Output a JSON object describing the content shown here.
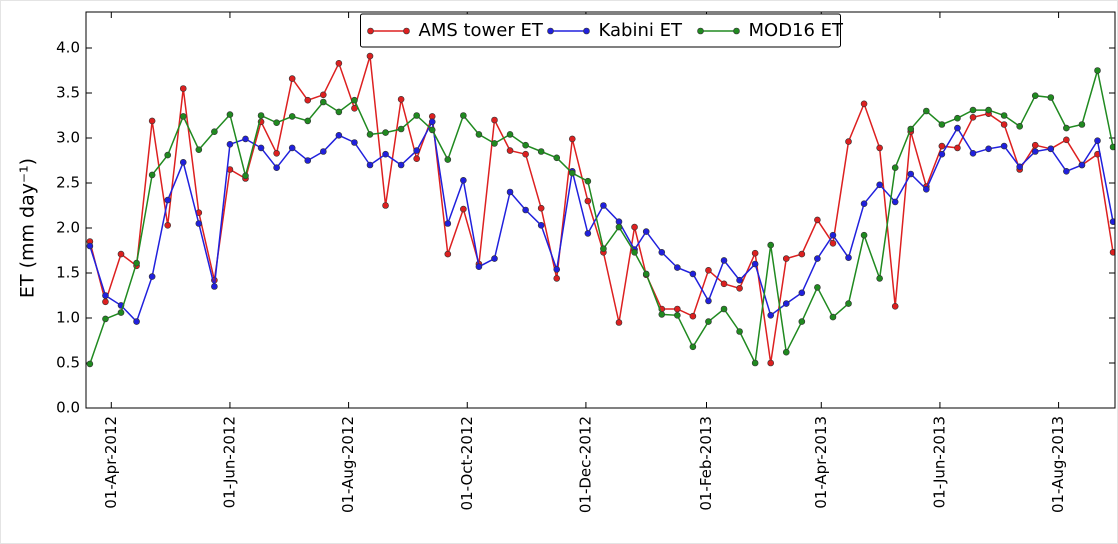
{
  "chart_data": {
    "type": "line",
    "ylabel": "ET (mm day⁻¹)",
    "x": [
      "2012-03-21",
      "2012-03-29",
      "2012-04-06",
      "2012-04-14",
      "2012-04-22",
      "2012-04-30",
      "2012-05-08",
      "2012-05-16",
      "2012-05-24",
      "2012-06-01",
      "2012-06-09",
      "2012-06-17",
      "2012-06-25",
      "2012-07-03",
      "2012-07-11",
      "2012-07-19",
      "2012-07-27",
      "2012-08-04",
      "2012-08-12",
      "2012-08-20",
      "2012-08-28",
      "2012-09-05",
      "2012-09-13",
      "2012-09-21",
      "2012-09-29",
      "2012-10-07",
      "2012-10-15",
      "2012-10-23",
      "2012-10-31",
      "2012-11-08",
      "2012-11-16",
      "2012-11-24",
      "2012-12-02",
      "2012-12-10",
      "2012-12-18",
      "2012-12-26",
      "2013-01-01",
      "2013-01-09",
      "2013-01-17",
      "2013-01-25",
      "2013-02-02",
      "2013-02-10",
      "2013-02-18",
      "2013-02-26",
      "2013-03-06",
      "2013-03-14",
      "2013-03-22",
      "2013-03-30",
      "2013-04-07",
      "2013-04-15",
      "2013-04-23",
      "2013-05-01",
      "2013-05-09",
      "2013-05-17",
      "2013-05-25",
      "2013-06-02",
      "2013-06-10",
      "2013-06-18",
      "2013-06-26",
      "2013-07-04",
      "2013-07-12",
      "2013-07-20",
      "2013-07-28",
      "2013-08-05",
      "2013-08-13",
      "2013-08-21",
      "2013-08-29"
    ],
    "series": [
      {
        "name": "AMS tower ET",
        "color": "#dd2020",
        "values": [
          1.85,
          1.18,
          1.71,
          1.58,
          3.19,
          2.03,
          3.55,
          2.17,
          1.42,
          2.65,
          2.55,
          3.18,
          2.83,
          3.66,
          3.42,
          3.48,
          3.83,
          3.33,
          3.91,
          2.25,
          3.43,
          2.77,
          3.24,
          1.71,
          2.21,
          1.6,
          3.2,
          2.86,
          2.82,
          2.22,
          1.44,
          2.99,
          2.3,
          1.73,
          0.95,
          2.01,
          1.48,
          1.1,
          1.1,
          1.02,
          1.53,
          1.38,
          1.33,
          1.72,
          0.5,
          1.66,
          1.71,
          2.09,
          1.83,
          2.96,
          3.38,
          2.89,
          1.13,
          3.07,
          2.46,
          2.91,
          2.89,
          3.23,
          3.27,
          3.15,
          2.65,
          2.92,
          2.88,
          2.98,
          2.7,
          2.82,
          1.73
        ]
      },
      {
        "name": "Kabini ET",
        "color": "#2020dd",
        "values": [
          1.8,
          1.25,
          1.14,
          0.96,
          1.46,
          2.31,
          2.73,
          2.05,
          1.35,
          2.93,
          2.99,
          2.89,
          2.67,
          2.89,
          2.75,
          2.85,
          3.03,
          2.95,
          2.7,
          2.82,
          2.7,
          2.86,
          3.18,
          2.05,
          2.53,
          1.57,
          1.66,
          2.4,
          2.2,
          2.03,
          1.54,
          2.63,
          1.94,
          2.25,
          2.07,
          1.76,
          1.96,
          1.73,
          1.56,
          1.49,
          1.19,
          1.64,
          1.42,
          1.6,
          1.03,
          1.16,
          1.28,
          1.66,
          1.92,
          1.67,
          2.27,
          2.48,
          2.29,
          2.6,
          2.43,
          2.82,
          3.11,
          2.83,
          2.88,
          2.91,
          2.68,
          2.85,
          2.88,
          2.63,
          2.7,
          2.97,
          2.07
        ]
      },
      {
        "name": "MOD16 ET",
        "color": "#208a20",
        "values": [
          0.49,
          0.99,
          1.06,
          1.61,
          2.59,
          2.81,
          3.24,
          2.87,
          3.07,
          3.26,
          2.58,
          3.25,
          3.17,
          3.24,
          3.19,
          3.4,
          3.29,
          3.42,
          3.04,
          3.06,
          3.1,
          3.25,
          3.09,
          2.76,
          3.25,
          3.04,
          2.94,
          3.04,
          2.92,
          2.85,
          2.78,
          2.61,
          2.52,
          1.77,
          2.01,
          1.73,
          1.49,
          1.04,
          1.03,
          0.68,
          0.96,
          1.1,
          0.85,
          0.5,
          1.81,
          0.62,
          0.96,
          1.34,
          1.01,
          1.16,
          1.92,
          1.44,
          2.67,
          3.1,
          3.3,
          3.15,
          3.22,
          3.31,
          3.31,
          3.25,
          3.13,
          3.47,
          3.45,
          3.11,
          3.15,
          3.75,
          2.9
        ]
      }
    ],
    "xlim": [
      "2012-03-19",
      "2013-08-30"
    ],
    "xticks": [
      {
        "value": "2012-04-01",
        "label": "01-Apr-2012"
      },
      {
        "value": "2012-06-01",
        "label": "01-Jun-2012"
      },
      {
        "value": "2012-08-01",
        "label": "01-Aug-2012"
      },
      {
        "value": "2012-10-01",
        "label": "01-Oct-2012"
      },
      {
        "value": "2012-12-01",
        "label": "01-Dec-2012"
      },
      {
        "value": "2013-02-01",
        "label": "01-Feb-2013"
      },
      {
        "value": "2013-04-01",
        "label": "01-Apr-2013"
      },
      {
        "value": "2013-06-01",
        "label": "01-Jun-2013"
      },
      {
        "value": "2013-08-01",
        "label": "01-Aug-2013"
      }
    ],
    "ylim": [
      0,
      4.4
    ],
    "yticks": [
      {
        "value": 0,
        "label": "0.0"
      },
      {
        "value": 0.5,
        "label": "0.5"
      },
      {
        "value": 1,
        "label": "1.0"
      },
      {
        "value": 1.5,
        "label": "1.5"
      },
      {
        "value": 2,
        "label": "2.0"
      },
      {
        "value": 2.5,
        "label": "2.5"
      },
      {
        "value": 3,
        "label": "3.0"
      },
      {
        "value": 3.5,
        "label": "3.5"
      },
      {
        "value": 4,
        "label": "4.0"
      }
    ],
    "legend": "top"
  }
}
